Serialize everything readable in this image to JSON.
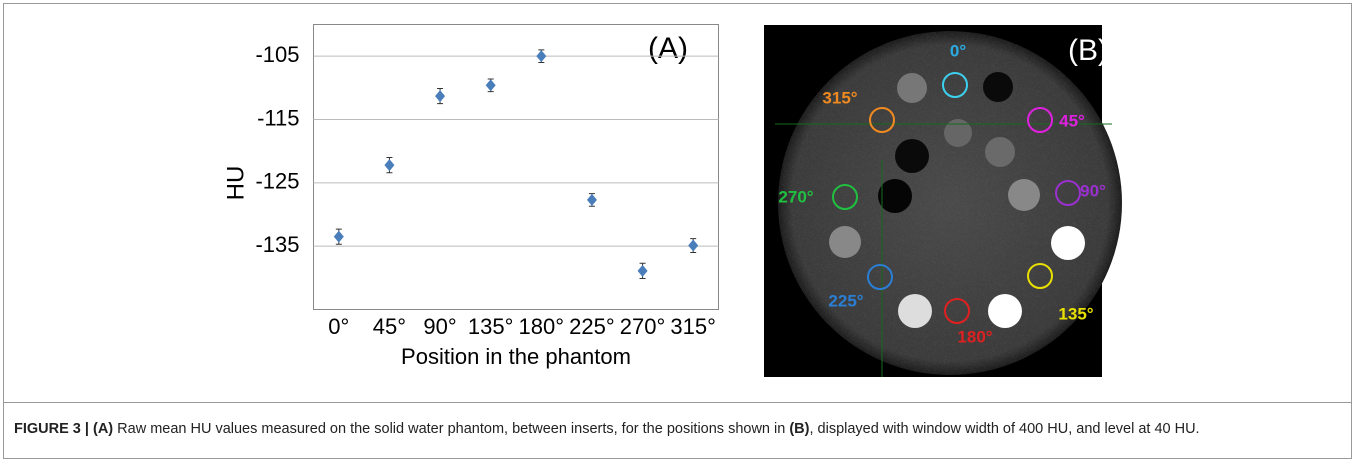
{
  "chart_data": {
    "type": "scatter",
    "panel_label": "(A)",
    "y_label": "HU",
    "x_label": "Position in the phantom",
    "categories": [
      "0°",
      "45°",
      "90°",
      "135°",
      "180°",
      "225°",
      "270°",
      "315°"
    ],
    "values": [
      -133.5,
      -122.2,
      -111.3,
      -109.6,
      -105,
      -127.7,
      -138.9,
      -134.9
    ],
    "errors": [
      1.2,
      1.2,
      1.2,
      1.0,
      1.0,
      1.0,
      1.2,
      1.1
    ],
    "color": "#4a7ebb",
    "ylim": [
      -145,
      -100
    ],
    "yticks": [
      -135,
      -125,
      -115,
      -105
    ],
    "grid": true
  },
  "panel_b": {
    "label": "(B)",
    "positions": [
      "0°",
      "45°",
      "90°",
      "135°",
      "180°",
      "225°",
      "270°",
      "315°"
    ]
  },
  "caption": {
    "segments": [
      "FIGURE 3 | (A)",
      " Raw mean HU values measured on the solid water phantom, between inserts, for the positions shown in ",
      "(B)",
      ", displayed with window width of 400 HU, and level at 40 HU."
    ]
  }
}
